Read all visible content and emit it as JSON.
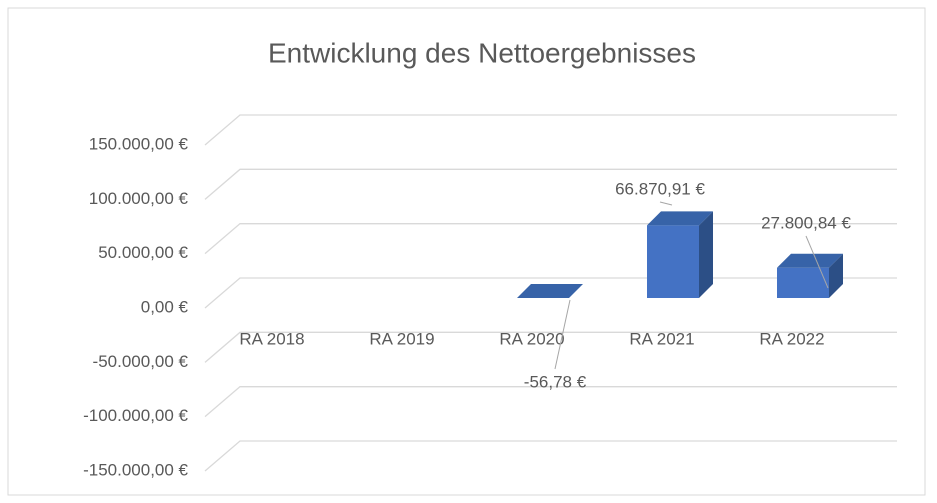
{
  "chart_data": {
    "type": "bar3d",
    "title": "Entwicklung des Nettoergebnisses",
    "categories": [
      "RA 2018",
      "RA 2019",
      "RA 2020",
      "RA 2021",
      "RA 2022"
    ],
    "values": [
      null,
      null,
      -56.78,
      66870.91,
      27800.84
    ],
    "value_labels": [
      null,
      null,
      "-56,78 €",
      "66.870,91 €",
      "27.800,84 €"
    ],
    "color": "#4472c4",
    "ylim": [
      -150000,
      150000
    ],
    "yticks": [
      {
        "value": -150000,
        "label": "-150.000,00 €"
      },
      {
        "value": -100000,
        "label": "-100.000,00 €"
      },
      {
        "value": -50000,
        "label": "-50.000,00 €"
      },
      {
        "value": 0,
        "label": "0,00 €"
      },
      {
        "value": 50000,
        "label": "50.000,00 €"
      },
      {
        "value": 100000,
        "label": "100.000,00 €"
      },
      {
        "value": 150000,
        "label": "150.000,00 €"
      }
    ],
    "grid": true
  }
}
